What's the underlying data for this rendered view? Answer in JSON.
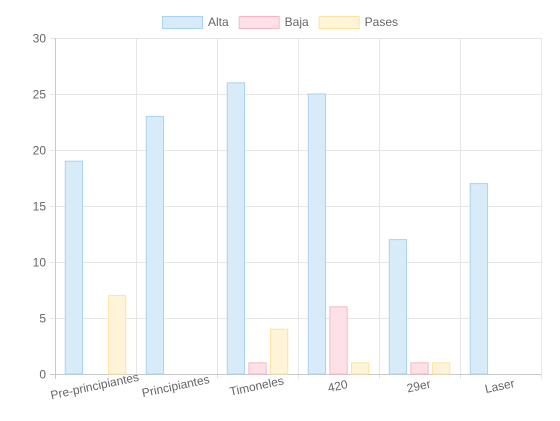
{
  "chart_data": {
    "type": "bar",
    "categories": [
      "Pre-principiantes",
      "Principiantes",
      "Timoneles",
      "420",
      "29er",
      "Laser"
    ],
    "series": [
      {
        "name": "Alta",
        "values": [
          19,
          23,
          26,
          25,
          12,
          17
        ],
        "fill": "#d8ebf8",
        "stroke": "#a9d3f2"
      },
      {
        "name": "Baja",
        "values": [
          0,
          0,
          1,
          6,
          1,
          0
        ],
        "fill": "#fde1e6",
        "stroke": "#f8b7c5"
      },
      {
        "name": "Pases",
        "values": [
          7,
          0,
          4,
          1,
          1,
          0
        ],
        "fill": "#fff4d8",
        "stroke": "#fde3a2"
      }
    ],
    "ylim": [
      0,
      30
    ],
    "yticks": [
      0,
      5,
      10,
      15,
      20,
      25,
      30
    ],
    "grid": true,
    "legend_position": "top"
  }
}
